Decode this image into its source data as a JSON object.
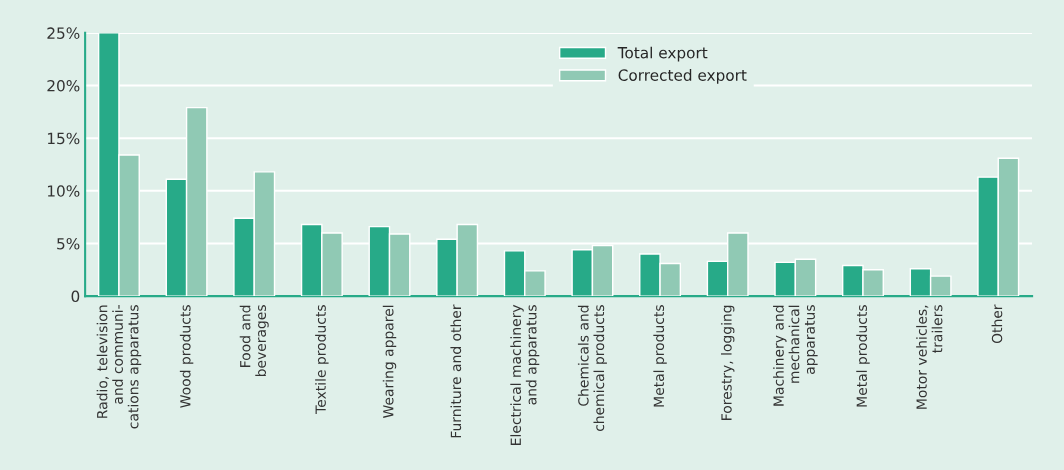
{
  "chart_data": {
    "type": "bar",
    "categories": [
      "Radio, television\nand communi-\ncations apparatus",
      "Wood products",
      "Food and\nbeverages",
      "Textile products",
      "Wearing apparel",
      "Furniture and other",
      "Electrical machinery\nand apparatus",
      "Chemicals and\nchemical products",
      "Metal products",
      "Forestry, logging",
      "Machinery and\nmechanical\napparatus",
      "Metal products",
      "Motor vehicles,\ntrailers",
      "Other"
    ],
    "series": [
      {
        "name": "Total export",
        "color": "#27aa88",
        "values": [
          25,
          11.1,
          7.4,
          6.8,
          6.6,
          5.4,
          4.3,
          4.4,
          4.0,
          3.3,
          3.2,
          2.9,
          2.6,
          11.3
        ]
      },
      {
        "name": "Corrected export",
        "color": "#90c9b4",
        "values": [
          13.4,
          17.9,
          11.8,
          6.0,
          5.9,
          6.8,
          2.4,
          4.8,
          3.1,
          6.0,
          3.5,
          2.5,
          1.9,
          13.1
        ]
      }
    ],
    "ylim": [
      0,
      25
    ],
    "yticks": [
      {
        "value": 0,
        "label": "0"
      },
      {
        "value": 5,
        "label": "5%"
      },
      {
        "value": 10,
        "label": "10%"
      },
      {
        "value": 15,
        "label": "15%"
      },
      {
        "value": 20,
        "label": "20%"
      },
      {
        "value": 25,
        "label": "25%"
      }
    ],
    "grid": "y",
    "legend": "top"
  }
}
